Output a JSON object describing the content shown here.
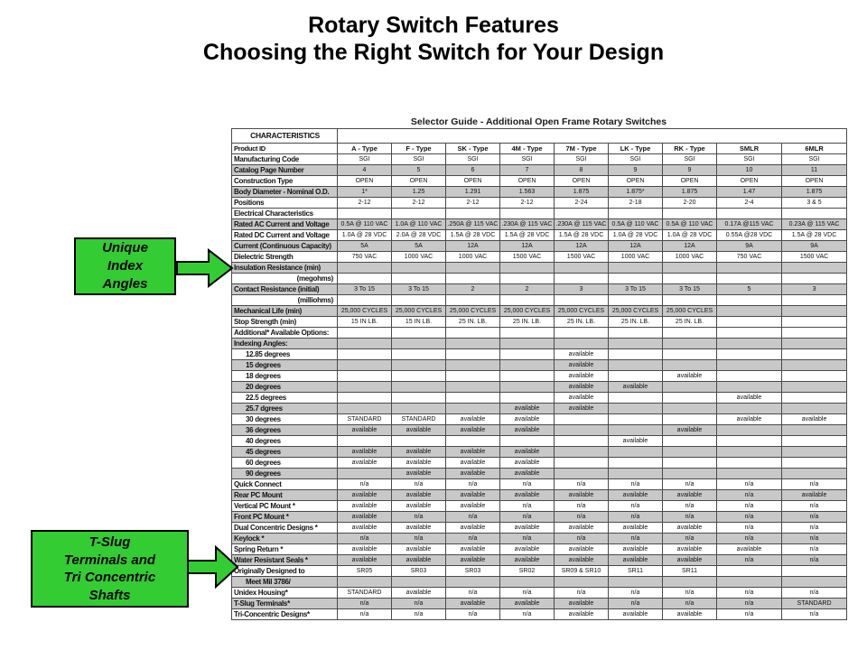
{
  "slide": {
    "title_line1": "Rotary Switch Features",
    "title_line2": "Choosing the Right Switch for Your Design"
  },
  "colors": {
    "callout_green": "#33cc33",
    "row_shade": "#c8c8c8",
    "table_border": "#4a4a4a"
  },
  "callouts": [
    {
      "lines": [
        "Unique",
        "Index",
        "Angles"
      ]
    },
    {
      "lines": [
        "T-Slug",
        "Terminals and",
        "Tri Concentric",
        "Shafts"
      ]
    }
  ],
  "table": {
    "title": "Selector Guide - Additional Open Frame Rotary Switches",
    "corner_label": "CHARACTERISTICS",
    "columns": [
      "A - Type",
      "F - Type",
      "SK - Type",
      "4M - Type",
      "7M - Type",
      "LK - Type",
      "RK - Type",
      "SMLR",
      "6MLR"
    ],
    "rows": [
      {
        "label": "Product ID",
        "shade": false,
        "bold_values": true,
        "values": [
          "A - Type",
          "F - Type",
          "SK - Type",
          "4M - Type",
          "7M - Type",
          "LK - Type",
          "RK - Type",
          "SMLR",
          "6MLR"
        ]
      },
      {
        "label": "Manufacturing Code",
        "shade": false,
        "values": [
          "SGI",
          "SGI",
          "SGI",
          "SGI",
          "SGI",
          "SGI",
          "SGI",
          "SGI",
          "SGI"
        ]
      },
      {
        "label": "Catalog Page Number",
        "shade": true,
        "values": [
          "4",
          "5",
          "6",
          "7",
          "8",
          "9",
          "9",
          "10",
          "11"
        ]
      },
      {
        "label": "Construction Type",
        "shade": false,
        "values": [
          "OPEN",
          "OPEN",
          "OPEN",
          "OPEN",
          "OPEN",
          "OPEN",
          "OPEN",
          "OPEN",
          "OPEN"
        ]
      },
      {
        "label": "Body Diameter - Nominal O.D.",
        "shade": true,
        "values": [
          "1*",
          "1.25",
          "1.291",
          "1.563",
          "1.875",
          "1.875*",
          "1.875",
          "1.47",
          "1.875"
        ]
      },
      {
        "label": "Positions",
        "shade": false,
        "values": [
          "2-12",
          "2-12",
          "2-12",
          "2-12",
          "2-24",
          "2-18",
          "2-20",
          "2-4",
          "3 & 5"
        ]
      },
      {
        "label": "Electrical Characteristics",
        "shade": false,
        "values": [
          "",
          "",
          "",
          "",
          "",
          "",
          "",
          "",
          ""
        ]
      },
      {
        "label": "Rated AC Current and Voltage",
        "shade": true,
        "values": [
          "0.5A @ 110 VAC",
          "1.0A @ 110 VAC",
          ".250A @ 115 VAC",
          ".230A @ 115 VAC",
          ".230A @ 115 VAC",
          "0.5A @ 110 VAC",
          "0.5A @ 110 VAC",
          "0.17A @115 VAC",
          "0.23A @ 115 VAC"
        ]
      },
      {
        "label": "Rated DC Current and Voltage",
        "shade": false,
        "values": [
          "1.0A @ 28 VDC",
          "2.0A @ 28 VDC",
          "1.5A @ 28 VDC",
          "1.5A @ 28 VDC",
          "1.5A @ 28 VDC",
          "1.0A @ 28 VDC",
          "1.0A @ 28 VDC",
          "0.55A @28 VDC",
          "1.5A @ 28 VDC"
        ]
      },
      {
        "label": "Current (Continuous Capacity)",
        "shade": true,
        "values": [
          "5A",
          "5A",
          "12A",
          "12A",
          "12A",
          "12A",
          "12A",
          "9A",
          "9A"
        ]
      },
      {
        "label": "Dielectric Strength",
        "shade": false,
        "values": [
          "750 VAC",
          "1000 VAC",
          "1000 VAC",
          "1500 VAC",
          "1500 VAC",
          "1000 VAC",
          "1000 VAC",
          "750 VAC",
          "1500 VAC"
        ]
      },
      {
        "label": "Insulation Resistance (min)",
        "shade": true,
        "values": [
          "",
          "",
          "",
          "",
          "",
          "",
          "",
          "",
          ""
        ]
      },
      {
        "label": "(megohms)",
        "shade": false,
        "style": "right",
        "values": [
          "",
          "",
          "",
          "",
          "",
          "",
          "",
          "",
          ""
        ]
      },
      {
        "label": "Contact Resistance (initial)",
        "shade": true,
        "values": [
          "3 To 15",
          "3 To 15",
          "2",
          "2",
          "3",
          "3 To 15",
          "3 To 15",
          "5",
          "3"
        ]
      },
      {
        "label": "(milliohms)",
        "shade": false,
        "style": "right",
        "values": [
          "",
          "",
          "",
          "",
          "",
          "",
          "",
          "",
          ""
        ]
      },
      {
        "label": "Mechanical Life (min)",
        "shade": true,
        "values": [
          "25,000 CYCLES",
          "25,000 CYCLES",
          "25,000 CYCLES",
          "25,000 CYCLES",
          "25,000 CYCLES",
          "25,000 CYCLES",
          "25,000 CYCLES",
          "",
          ""
        ]
      },
      {
        "label": "Stop Strength (min)",
        "shade": false,
        "values": [
          "15 IN LB.",
          "15 IN LB.",
          "25 IN. LB.",
          "25 IN. LB.",
          "25 IN. LB.",
          "25 IN. LB.",
          "25 IN. LB.",
          "",
          ""
        ]
      },
      {
        "label": "Additional* Available Options:",
        "shade": false,
        "values": [
          "",
          "",
          "",
          "",
          "",
          "",
          "",
          "",
          ""
        ]
      },
      {
        "label": "Indexing Angles:",
        "shade": true,
        "values": [
          "",
          "",
          "",
          "",
          "",
          "",
          "",
          "",
          ""
        ]
      },
      {
        "label": "12.85 degrees",
        "shade": false,
        "style": "indent",
        "values": [
          "",
          "",
          "",
          "",
          "available",
          "",
          "",
          "",
          ""
        ]
      },
      {
        "label": "15 degrees",
        "shade": true,
        "style": "indent",
        "values": [
          "",
          "",
          "",
          "",
          "available",
          "",
          "",
          "",
          ""
        ]
      },
      {
        "label": "18 degrees",
        "shade": false,
        "style": "indent",
        "values": [
          "",
          "",
          "",
          "",
          "available",
          "",
          "available",
          "",
          ""
        ]
      },
      {
        "label": "20 degrees",
        "shade": true,
        "style": "indent",
        "values": [
          "",
          "",
          "",
          "",
          "available",
          "available",
          "",
          "",
          ""
        ]
      },
      {
        "label": "22.5 degrees",
        "shade": false,
        "style": "indent",
        "values": [
          "",
          "",
          "",
          "",
          "available",
          "",
          "",
          "available",
          ""
        ]
      },
      {
        "label": "25.7 dgrees",
        "shade": true,
        "style": "indent",
        "values": [
          "",
          "",
          "",
          "available",
          "available",
          "",
          "",
          "",
          ""
        ]
      },
      {
        "label": "30 degrees",
        "shade": false,
        "style": "indent",
        "values": [
          "STANDARD",
          "STANDARD",
          "available",
          "available",
          "",
          "",
          "",
          "available",
          "available"
        ]
      },
      {
        "label": "36 degrees",
        "shade": true,
        "style": "indent",
        "values": [
          "available",
          "available",
          "available",
          "available",
          "",
          "",
          "available",
          "",
          ""
        ]
      },
      {
        "label": "40 degrees",
        "shade": false,
        "style": "indent",
        "values": [
          "",
          "",
          "",
          "",
          "",
          "available",
          "",
          "",
          ""
        ]
      },
      {
        "label": "45 degrees",
        "shade": true,
        "style": "indent",
        "values": [
          "available",
          "available",
          "available",
          "available",
          "",
          "",
          "",
          "",
          ""
        ]
      },
      {
        "label": "60 degrees",
        "shade": false,
        "style": "indent",
        "values": [
          "available",
          "available",
          "available",
          "available",
          "",
          "",
          "",
          "",
          ""
        ]
      },
      {
        "label": "90 degrees",
        "shade": true,
        "style": "indent",
        "values": [
          "",
          "available",
          "available",
          "available",
          "",
          "",
          "",
          "",
          ""
        ]
      },
      {
        "label": "Quick Connect",
        "shade": false,
        "values": [
          "n/a",
          "n/a",
          "n/a",
          "n/a",
          "n/a",
          "n/a",
          "n/a",
          "n/a",
          "n/a"
        ]
      },
      {
        "label": "Rear PC Mount",
        "shade": true,
        "values": [
          "available",
          "available",
          "available",
          "available",
          "available",
          "available",
          "available",
          "n/a",
          "available"
        ]
      },
      {
        "label": "Vertical PC Mount *",
        "shade": false,
        "values": [
          "available",
          "available",
          "available",
          "n/a",
          "n/a",
          "n/a",
          "n/a",
          "n/a",
          "n/a"
        ]
      },
      {
        "label": "Front PC Mount *",
        "shade": true,
        "values": [
          "available",
          "n/a",
          "n/a",
          "n/a",
          "n/a",
          "n/a",
          "n/a",
          "n/a",
          "n/a"
        ]
      },
      {
        "label": "Dual Concentric Designs *",
        "shade": false,
        "values": [
          "available",
          "available",
          "available",
          "available",
          "available",
          "available",
          "available",
          "n/a",
          "n/a"
        ]
      },
      {
        "label": "Keylock *",
        "shade": true,
        "values": [
          "n/a",
          "n/a",
          "n/a",
          "n/a",
          "n/a",
          "n/a",
          "n/a",
          "n/a",
          "n/a"
        ]
      },
      {
        "label": "Spring Return *",
        "shade": false,
        "values": [
          "available",
          "available",
          "available",
          "available",
          "available",
          "available",
          "available",
          "available",
          "n/a"
        ]
      },
      {
        "label": "Water Resistant Seals *",
        "shade": true,
        "values": [
          "available",
          "available",
          "available",
          "available",
          "available",
          "available",
          "available",
          "n/a",
          "n/a"
        ]
      },
      {
        "label": "Originally Designed to",
        "shade": false,
        "values": [
          "SR05",
          "SR03",
          "SR03",
          "SR02",
          "SR09 & SR10",
          "SR11",
          "SR11",
          "",
          ""
        ]
      },
      {
        "label": "Meet Mil 3786/",
        "shade": true,
        "style": "indent",
        "values": [
          "",
          "",
          "",
          "",
          "",
          "",
          "",
          "",
          ""
        ]
      },
      {
        "label": "Unidex Housing*",
        "shade": false,
        "values": [
          "STANDARD",
          "available",
          "n/a",
          "n/a",
          "n/a",
          "n/a",
          "n/a",
          "n/a",
          "n/a"
        ]
      },
      {
        "label": "T-Slug Terminals*",
        "shade": true,
        "values": [
          "n/a",
          "n/a",
          "available",
          "available",
          "available",
          "n/a",
          "n/a",
          "n/a",
          "STANDARD"
        ]
      },
      {
        "label": "Tri-Concentric Designs*",
        "shade": false,
        "values": [
          "n/a",
          "n/a",
          "n/a",
          "n/a",
          "available",
          "available",
          "available",
          "n/a",
          "n/a"
        ]
      }
    ]
  }
}
